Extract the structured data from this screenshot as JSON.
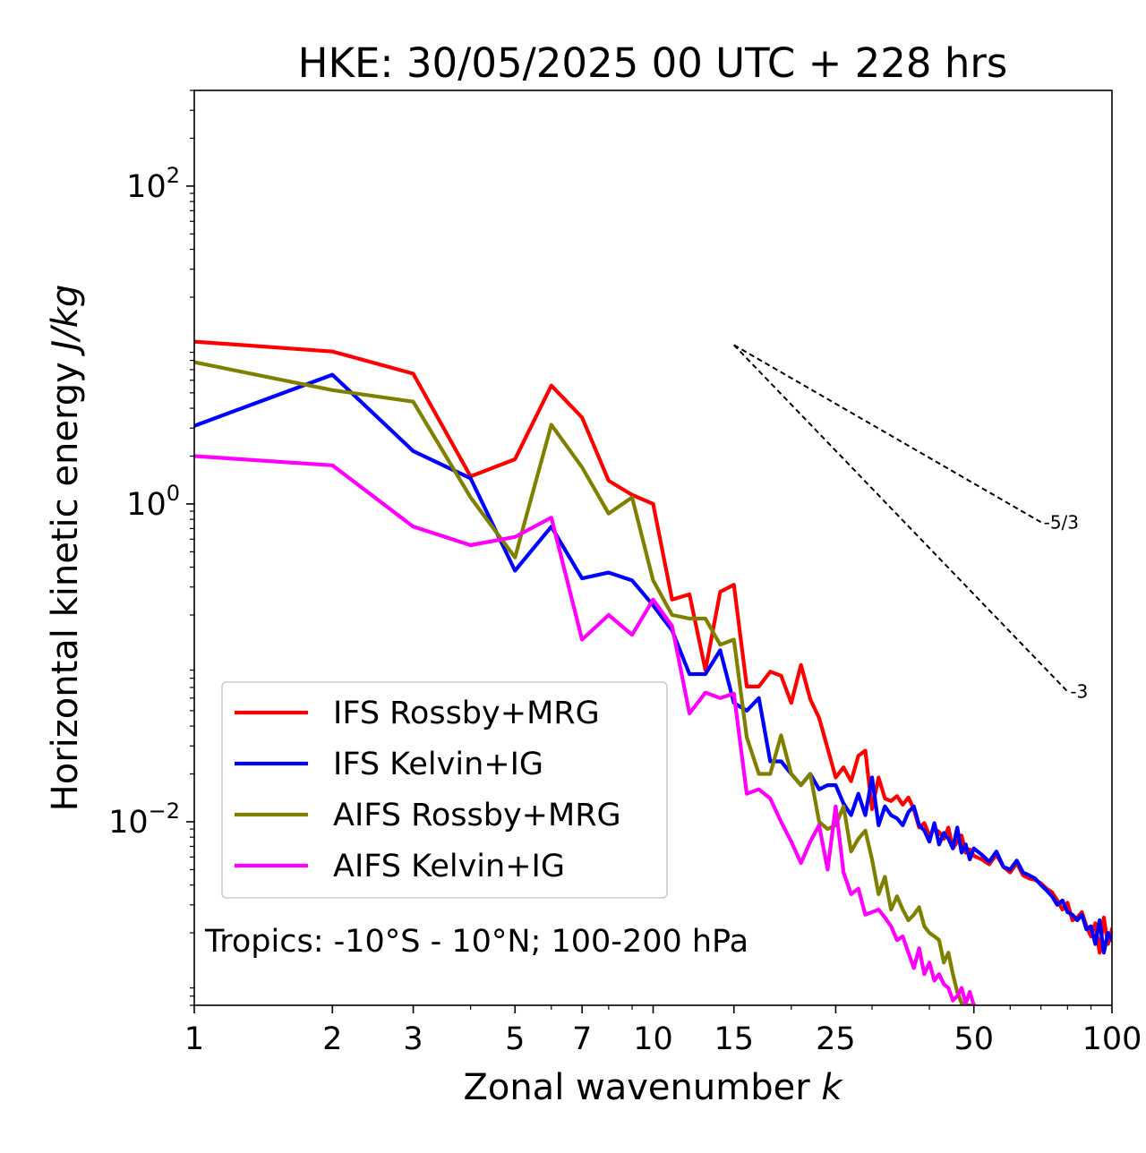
{
  "chart_data": {
    "type": "line",
    "title": "HKE: 30/05/2025 00 UTC + 228 hrs",
    "xlabel": "Zonal wavenumber ",
    "xlabel_var": "k",
    "ylabel": "Horizontal kinetic energy ",
    "ylabel_unit": "J/kg",
    "xscale": "log",
    "yscale": "log",
    "xlim": [
      1,
      100
    ],
    "ylim": [
      0.0007,
      400
    ],
    "x_ticks": [
      1,
      2,
      3,
      5,
      7,
      10,
      15,
      25,
      50,
      100
    ],
    "x_tick_labels": [
      "1",
      "2",
      "3",
      "5",
      "7",
      "10",
      "15",
      "25",
      "50",
      "100"
    ],
    "y_ticks": [
      0.01,
      1,
      100
    ],
    "y_tick_labels": [
      {
        "base": "10",
        "exp": "−2"
      },
      {
        "base": "10",
        "exp": "0"
      },
      {
        "base": "10",
        "exp": "2"
      }
    ],
    "legend_position": "lower-left",
    "annotation": "Tropics: -10°S - 10°N; 100-200 hPa",
    "reference_lines": [
      {
        "label": "-5/3",
        "x": [
          15,
          70
        ],
        "y": [
          10,
          0.768
        ]
      },
      {
        "label": "-3",
        "x": [
          15,
          80
        ],
        "y": [
          10,
          0.066
        ]
      }
    ],
    "series": [
      {
        "name": "IFS Rossby+MRG",
        "color": "#ff0000",
        "x": [
          1,
          2,
          3,
          4,
          5,
          6,
          7,
          8,
          9,
          10,
          11,
          12,
          13,
          14,
          15,
          16,
          17,
          18,
          19,
          20,
          21,
          22,
          23,
          24,
          25,
          26,
          27,
          28,
          29,
          30,
          31,
          32,
          33,
          34,
          35,
          36,
          37,
          38,
          39,
          40,
          41,
          42,
          43,
          44,
          45,
          46,
          47,
          48,
          49,
          50,
          52,
          54,
          56,
          58,
          60,
          62,
          64,
          66,
          68,
          70,
          72,
          74,
          76,
          78,
          80,
          82,
          84,
          86,
          88,
          90,
          92,
          94,
          96,
          98,
          100
        ],
        "y": [
          10.5,
          9.1,
          6.6,
          1.49,
          1.91,
          5.56,
          3.5,
          1.4,
          1.14,
          1.0,
          0.25,
          0.27,
          0.09,
          0.28,
          0.31,
          0.071,
          0.071,
          0.088,
          0.083,
          0.056,
          0.097,
          0.059,
          0.045,
          0.029,
          0.019,
          0.022,
          0.018,
          0.026,
          0.028,
          0.012,
          0.019,
          0.014,
          0.0135,
          0.0145,
          0.0128,
          0.0142,
          0.012,
          0.0092,
          0.0098,
          0.0082,
          0.0091,
          0.0086,
          0.0078,
          0.0092,
          0.0068,
          0.0075,
          0.0082,
          0.0064,
          0.0067,
          0.0061,
          0.0058,
          0.0054,
          0.0062,
          0.0052,
          0.0048,
          0.0055,
          0.0046,
          0.0044,
          0.0043,
          0.0041,
          0.0038,
          0.0036,
          0.0032,
          0.0028,
          0.0031,
          0.0024,
          0.0025,
          0.0027,
          0.0022,
          0.0019,
          0.0023,
          0.0015,
          0.0025,
          0.0017,
          0.0021
        ]
      },
      {
        "name": "IFS Kelvin+IG",
        "color": "#0000ff",
        "x": [
          1,
          2,
          3,
          4,
          5,
          6,
          7,
          8,
          9,
          10,
          11,
          12,
          13,
          14,
          15,
          16,
          17,
          18,
          19,
          20,
          21,
          22,
          23,
          24,
          25,
          26,
          27,
          28,
          29,
          30,
          31,
          32,
          33,
          34,
          35,
          36,
          37,
          38,
          39,
          40,
          41,
          42,
          43,
          44,
          45,
          46,
          47,
          48,
          49,
          50,
          52,
          54,
          56,
          58,
          60,
          62,
          64,
          66,
          68,
          70,
          72,
          74,
          76,
          78,
          80,
          82,
          84,
          86,
          88,
          90,
          92,
          94,
          96,
          98,
          100
        ],
        "y": [
          3.1,
          6.5,
          2.15,
          1.45,
          0.38,
          0.72,
          0.34,
          0.37,
          0.33,
          0.23,
          0.16,
          0.085,
          0.085,
          0.12,
          0.056,
          0.05,
          0.06,
          0.024,
          0.024,
          0.02,
          0.017,
          0.02,
          0.016,
          0.017,
          0.017,
          0.013,
          0.011,
          0.015,
          0.011,
          0.019,
          0.0095,
          0.0125,
          0.011,
          0.0105,
          0.0095,
          0.0115,
          0.0125,
          0.0095,
          0.0088,
          0.0075,
          0.0098,
          0.0072,
          0.0085,
          0.0078,
          0.0068,
          0.0092,
          0.0064,
          0.0072,
          0.0058,
          0.0068,
          0.0062,
          0.0056,
          0.0065,
          0.0052,
          0.005,
          0.0057,
          0.0048,
          0.0046,
          0.0044,
          0.004,
          0.0037,
          0.0034,
          0.003,
          0.0032,
          0.0027,
          0.0026,
          0.0024,
          0.0026,
          0.0021,
          0.0022,
          0.0017,
          0.0024,
          0.0015,
          0.002,
          0.0018
        ]
      },
      {
        "name": "AIFS Rossby+MRG",
        "color": "#808000",
        "x": [
          1,
          2,
          3,
          4,
          5,
          6,
          7,
          8,
          9,
          10,
          11,
          12,
          13,
          14,
          15,
          16,
          17,
          18,
          19,
          20,
          21,
          22,
          23,
          24,
          25,
          26,
          27,
          28,
          29,
          30,
          31,
          32,
          33,
          34,
          35,
          36,
          37,
          38,
          39,
          40,
          41,
          42,
          43,
          44,
          45,
          46,
          47,
          48,
          49,
          50
        ],
        "y": [
          7.8,
          5.2,
          4.4,
          1.1,
          0.46,
          3.15,
          1.7,
          0.87,
          1.1,
          0.33,
          0.2,
          0.19,
          0.19,
          0.13,
          0.14,
          0.034,
          0.02,
          0.02,
          0.035,
          0.02,
          0.017,
          0.02,
          0.01,
          0.009,
          0.0095,
          0.0125,
          0.0065,
          0.0078,
          0.0088,
          0.0058,
          0.0035,
          0.0045,
          0.0028,
          0.0034,
          0.0028,
          0.0024,
          0.0026,
          0.0029,
          0.0022,
          0.002,
          0.0019,
          0.0018,
          0.0013,
          0.0015,
          0.0011,
          0.00085,
          0.00072,
          0.0007,
          0.0007,
          0.0007
        ]
      },
      {
        "name": "AIFS Kelvin+IG",
        "color": "#ff00ff",
        "x": [
          1,
          2,
          3,
          4,
          5,
          6,
          7,
          8,
          9,
          10,
          11,
          12,
          13,
          14,
          15,
          16,
          17,
          18,
          19,
          20,
          21,
          22,
          23,
          24,
          25,
          26,
          27,
          28,
          29,
          30,
          31,
          32,
          33,
          34,
          35,
          36,
          37,
          38,
          39,
          40,
          41,
          42,
          43,
          44,
          45,
          46,
          47,
          48,
          49,
          50
        ],
        "y": [
          2.0,
          1.75,
          0.72,
          0.55,
          0.62,
          0.82,
          0.14,
          0.2,
          0.15,
          0.25,
          0.17,
          0.048,
          0.065,
          0.06,
          0.064,
          0.015,
          0.016,
          0.014,
          0.01,
          0.0075,
          0.0055,
          0.0075,
          0.0095,
          0.005,
          0.0125,
          0.0048,
          0.0035,
          0.0038,
          0.0026,
          0.0027,
          0.0028,
          0.0025,
          0.0022,
          0.0018,
          0.0019,
          0.0015,
          0.0012,
          0.0016,
          0.0011,
          0.0013,
          0.001,
          0.0011,
          0.00095,
          0.0009,
          0.00075,
          0.0008,
          0.0009,
          0.00072,
          0.00085,
          0.0007
        ]
      }
    ]
  }
}
